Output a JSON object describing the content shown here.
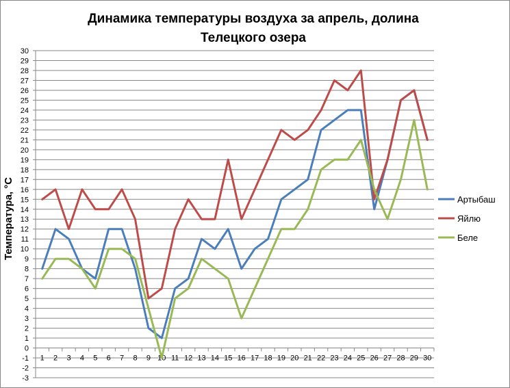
{
  "chart_data": {
    "type": "line",
    "title": "Динамика температуры воздуха за апрель, долина Телецкого озера",
    "title_lines": [
      "Динамика температуры воздуха за апрель, долина",
      "Телецкого озера"
    ],
    "xlabel": "",
    "ylabel": "Температура, °С",
    "ylim": [
      -3,
      30
    ],
    "grid": true,
    "legend_position": "right",
    "categories": [
      1,
      2,
      3,
      4,
      5,
      6,
      7,
      8,
      9,
      10,
      11,
      12,
      13,
      14,
      15,
      16,
      17,
      18,
      19,
      20,
      21,
      22,
      23,
      24,
      25,
      26,
      27,
      28,
      29,
      30
    ],
    "series": [
      {
        "name": "Артыбаш",
        "color": "#4A7EBB",
        "values": [
          8,
          12,
          11,
          8,
          7,
          12,
          12,
          8,
          2,
          1,
          6,
          7,
          11,
          10,
          12,
          8,
          10,
          11,
          15,
          16,
          17,
          22,
          23,
          24,
          24,
          14,
          19,
          25,
          26,
          21
        ]
      },
      {
        "name": "Яйлю",
        "color": "#BE4B48",
        "values": [
          15,
          16,
          12,
          16,
          14,
          14,
          16,
          13,
          5,
          6,
          12,
          15,
          13,
          13,
          19,
          13,
          16,
          19,
          22,
          21,
          22,
          24,
          27,
          26,
          28,
          15,
          19,
          25,
          26,
          21
        ]
      },
      {
        "name": "Беле",
        "color": "#98B954",
        "values": [
          7,
          9,
          9,
          8,
          6,
          10,
          10,
          9,
          4,
          -1,
          5,
          6,
          9,
          8,
          7,
          3,
          6,
          9,
          12,
          12,
          14,
          18,
          19,
          19,
          21,
          16,
          13,
          17,
          23,
          16
        ]
      }
    ]
  }
}
